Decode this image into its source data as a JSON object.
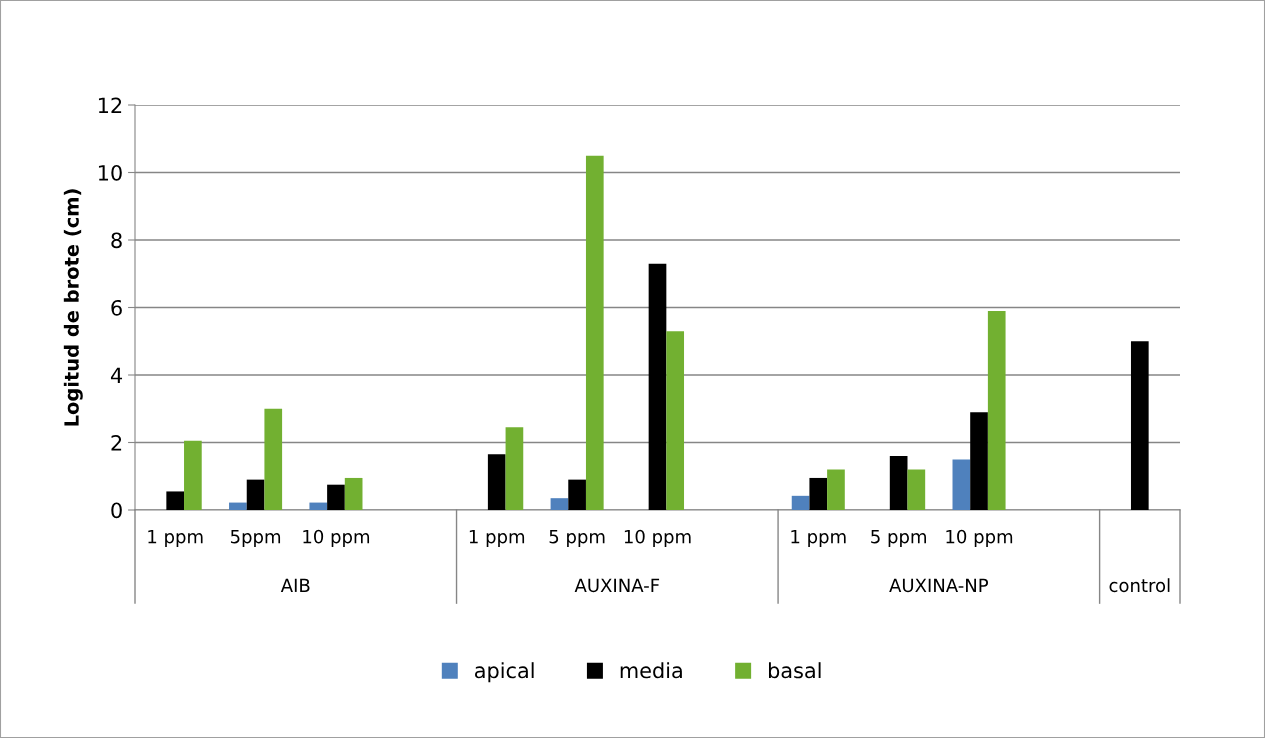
{
  "chart_data": {
    "type": "bar",
    "ylabel": "Logitud de brote (cm)",
    "categories": [
      "1 ppm",
      "5ppm",
      "10 ppm",
      null,
      "1 ppm",
      "5 ppm",
      "10 ppm",
      null,
      "1 ppm",
      "5 ppm",
      "10 ppm",
      null,
      null
    ],
    "annotations": [
      "AIB",
      "AUXINA-F",
      "AUXINA-NP",
      "control"
    ],
    "series": [
      {
        "name": "apical",
        "color": "#4f81bd",
        "values": [
          null,
          0.22,
          0.22,
          null,
          null,
          0.35,
          null,
          null,
          0.42,
          null,
          1.5,
          null,
          null
        ]
      },
      {
        "name": "media",
        "color": "#000000",
        "values": [
          0.55,
          0.9,
          0.75,
          null,
          1.65,
          0.9,
          7.3,
          null,
          0.95,
          1.6,
          2.9,
          null,
          5.0
        ]
      },
      {
        "name": "basal",
        "color": "#72b031",
        "values": [
          2.05,
          3.0,
          0.95,
          null,
          2.45,
          10.5,
          5.3,
          null,
          1.2,
          1.2,
          5.9,
          null,
          null
        ]
      }
    ],
    "ylim": [
      0,
      12
    ],
    "yticks": [
      0,
      2,
      4,
      6,
      8,
      10,
      12
    ],
    "grid": "y",
    "legend": "bottom"
  }
}
